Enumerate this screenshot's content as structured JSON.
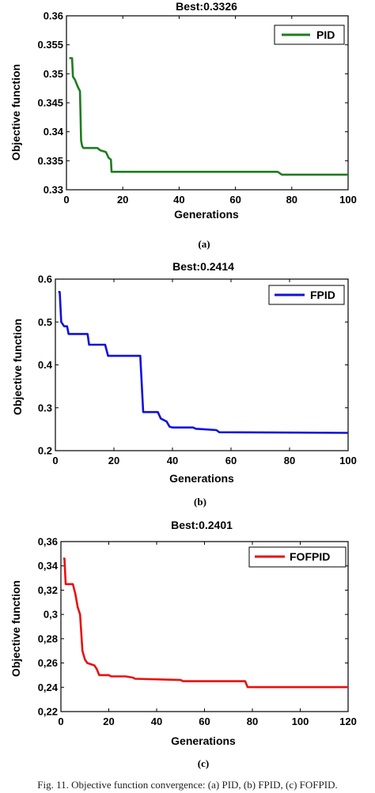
{
  "chart_data": [
    {
      "type": "line",
      "title": "Best:0.3326",
      "xlabel": "Generations",
      "ylabel": "Objective function",
      "xlim": [
        0,
        100
      ],
      "ylim": [
        0.33,
        0.36
      ],
      "xticks": [
        0,
        20,
        40,
        60,
        80,
        100
      ],
      "yticks": [
        0.33,
        0.335,
        0.34,
        0.345,
        0.35,
        0.355,
        0.36
      ],
      "ytick_labels": [
        "0.33",
        "0.335",
        "0.34",
        "0.345",
        "0.35",
        "0.355",
        "0.36"
      ],
      "grid": false,
      "legend": "top-right",
      "sublabel": "(a)",
      "series": [
        {
          "name": "PID",
          "color": "#1e7d1e",
          "points": [
            [
              1,
              0.3527
            ],
            [
              2,
              0.3527
            ],
            [
              2.3,
              0.3495
            ],
            [
              3,
              0.349
            ],
            [
              4,
              0.3478
            ],
            [
              4.8,
              0.347
            ],
            [
              5.2,
              0.3385
            ],
            [
              5.6,
              0.3375
            ],
            [
              6,
              0.3372
            ],
            [
              10,
              0.3372
            ],
            [
              11,
              0.3372
            ],
            [
              12,
              0.3368
            ],
            [
              14,
              0.3365
            ],
            [
              15,
              0.3355
            ],
            [
              15.8,
              0.3352
            ],
            [
              16,
              0.3331
            ],
            [
              40,
              0.3331
            ],
            [
              60,
              0.3331
            ],
            [
              75,
              0.3331
            ],
            [
              76.5,
              0.3326
            ],
            [
              100,
              0.3326
            ]
          ]
        }
      ]
    },
    {
      "type": "line",
      "title": "Best:0.2414",
      "xlabel": "Generations",
      "ylabel": "Objective function",
      "xlim": [
        0,
        100
      ],
      "ylim": [
        0.2,
        0.6
      ],
      "xticks": [
        0,
        20,
        40,
        60,
        80,
        100
      ],
      "yticks": [
        0.2,
        0.3,
        0.4,
        0.5,
        0.6
      ],
      "ytick_labels": [
        "0.2",
        "0.3",
        "0.4",
        "0.5",
        "0.6"
      ],
      "grid": false,
      "legend": "top-right",
      "sublabel": "(b)",
      "series": [
        {
          "name": "FPID",
          "color": "#1010e0",
          "points": [
            [
              1,
              0.57
            ],
            [
              1.5,
              0.57
            ],
            [
              2,
              0.5
            ],
            [
              3,
              0.49
            ],
            [
              4,
              0.49
            ],
            [
              4.5,
              0.472
            ],
            [
              11,
              0.472
            ],
            [
              11.5,
              0.447
            ],
            [
              17,
              0.447
            ],
            [
              18,
              0.421
            ],
            [
              29,
              0.421
            ],
            [
              30,
              0.29
            ],
            [
              35,
              0.29
            ],
            [
              36,
              0.275
            ],
            [
              38,
              0.268
            ],
            [
              39,
              0.256
            ],
            [
              40,
              0.254
            ],
            [
              47,
              0.254
            ],
            [
              48,
              0.251
            ],
            [
              55,
              0.248
            ],
            [
              56,
              0.243
            ],
            [
              100,
              0.2414
            ]
          ]
        }
      ]
    },
    {
      "type": "line",
      "title": "Best:0.2401",
      "xlabel": "Generations",
      "ylabel": "Objective function",
      "xlim": [
        0,
        120
      ],
      "ylim": [
        0.22,
        0.36
      ],
      "xticks": [
        0,
        20,
        40,
        60,
        80,
        100,
        120
      ],
      "yticks": [
        0.22,
        0.24,
        0.26,
        0.28,
        0.3,
        0.32,
        0.34,
        0.36
      ],
      "ytick_labels": [
        "0,22",
        "0,24",
        "0,26",
        "0,28",
        "0,3",
        "0,32",
        "0,34",
        "0,36"
      ],
      "grid": false,
      "legend": "top-right",
      "sublabel": "(c)",
      "series": [
        {
          "name": "FOFPID",
          "color": "#e81010",
          "points": [
            [
              1,
              0.346
            ],
            [
              1.5,
              0.346
            ],
            [
              2,
              0.325
            ],
            [
              5,
              0.325
            ],
            [
              6,
              0.317
            ],
            [
              7,
              0.306
            ],
            [
              8,
              0.3
            ],
            [
              9,
              0.27
            ],
            [
              10,
              0.263
            ],
            [
              11,
              0.26
            ],
            [
              14,
              0.258
            ],
            [
              15,
              0.255
            ],
            [
              16,
              0.25
            ],
            [
              20,
              0.25
            ],
            [
              21,
              0.249
            ],
            [
              27,
              0.249
            ],
            [
              30,
              0.248
            ],
            [
              31,
              0.247
            ],
            [
              50,
              0.246
            ],
            [
              51,
              0.245
            ],
            [
              77,
              0.245
            ],
            [
              78,
              0.2401
            ],
            [
              120,
              0.2401
            ]
          ]
        }
      ]
    }
  ],
  "caption": "Fig. 11. Objective function convergence: (a) PID, (b) FPID, (c) FOFPID."
}
